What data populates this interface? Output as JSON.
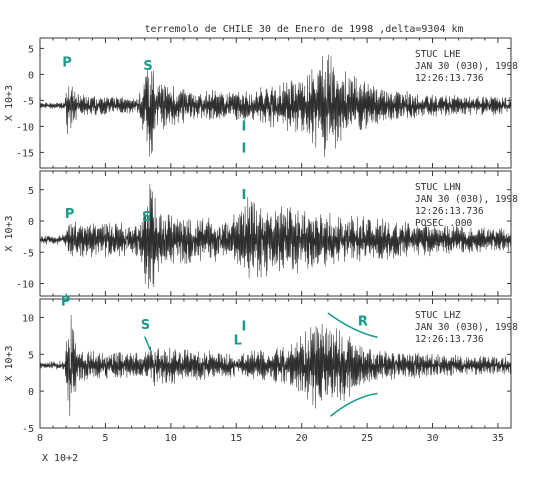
{
  "chart_data": {
    "type": "line",
    "title": "terremolo de CHILE 30 de Enero de 1998 ,delta=9304 km",
    "xlabel": "X 10+2",
    "xlim": [
      0,
      36
    ],
    "xticks": [
      0,
      5,
      10,
      15,
      20,
      25,
      30,
      35
    ],
    "accent": "#1a9a8e",
    "panels": [
      {
        "station": "STUC  LHE",
        "date": "JAN 30 (030), 1998",
        "time": "12:26:13.736",
        "extra": "",
        "ylabel": "X 10+3",
        "ylim": [
          -18,
          7
        ],
        "yticks": [
          5,
          0,
          -5,
          -10,
          -15
        ],
        "baseline": -6,
        "annotations": [
          {
            "text": "P",
            "x": 1.7,
            "y": 1.5
          },
          {
            "text": "S",
            "x": 7.9,
            "y": 0.8
          },
          {
            "text": "I",
            "x": 15.4,
            "y": -10.8
          },
          {
            "text": "I",
            "x": 15.4,
            "y": -15.0
          }
        ],
        "envelope": [
          {
            "x": 0,
            "a": 0.6
          },
          {
            "x": 1.9,
            "a": 0.8
          },
          {
            "x": 2.1,
            "a": 5.5
          },
          {
            "x": 3,
            "a": 2.2
          },
          {
            "x": 7.5,
            "a": 1.6
          },
          {
            "x": 8.4,
            "a": 11
          },
          {
            "x": 9,
            "a": 5
          },
          {
            "x": 12,
            "a": 3.2
          },
          {
            "x": 15.3,
            "a": 2.8
          },
          {
            "x": 17,
            "a": 3.8
          },
          {
            "x": 19,
            "a": 5.2
          },
          {
            "x": 20.5,
            "a": 6.5
          },
          {
            "x": 21.8,
            "a": 11
          },
          {
            "x": 23,
            "a": 7.5
          },
          {
            "x": 26,
            "a": 3.5
          },
          {
            "x": 30,
            "a": 2.3
          },
          {
            "x": 36,
            "a": 1.8
          }
        ]
      },
      {
        "station": "STUC  LHN",
        "date": "JAN 30 (030), 1998",
        "time": "12:26:13.736",
        "extra": "POSEC .000",
        "ylabel": "X 10+3",
        "ylim": [
          -12,
          8
        ],
        "yticks": [
          5,
          0,
          -5,
          -10
        ],
        "baseline": -3,
        "annotations": [
          {
            "text": "P",
            "x": 1.9,
            "y": 0.5
          },
          {
            "text": "S",
            "x": 7.8,
            "y": 0.0
          },
          {
            "text": "I",
            "x": 15.4,
            "y": 3.5
          }
        ],
        "envelope": [
          {
            "x": 0,
            "a": 0.7
          },
          {
            "x": 1.9,
            "a": 0.9
          },
          {
            "x": 2.2,
            "a": 3.0
          },
          {
            "x": 7.5,
            "a": 2.8
          },
          {
            "x": 8.4,
            "a": 10.5
          },
          {
            "x": 9.2,
            "a": 4.5
          },
          {
            "x": 14.5,
            "a": 3.3
          },
          {
            "x": 16,
            "a": 7.5
          },
          {
            "x": 17.5,
            "a": 6
          },
          {
            "x": 20,
            "a": 5.5
          },
          {
            "x": 23,
            "a": 4.2
          },
          {
            "x": 26,
            "a": 3.5
          },
          {
            "x": 30,
            "a": 2.6
          },
          {
            "x": 36,
            "a": 1.8
          }
        ]
      },
      {
        "station": "STUC  LHZ",
        "date": "JAN 30 (030), 1998",
        "time": "12:26:13.736",
        "extra": "",
        "ylabel": "X 10+3",
        "ylim": [
          -5,
          12.5
        ],
        "yticks": [
          10,
          5,
          0,
          -5
        ],
        "baseline": 3.5,
        "annotations": [
          {
            "text": "P",
            "x": 1.6,
            "y": 11.6
          },
          {
            "text": "S",
            "x": 7.7,
            "y": 8.4
          },
          {
            "text": "I",
            "x": 15.4,
            "y": 8.2
          },
          {
            "text": "L",
            "x": 14.8,
            "y": 6.3
          },
          {
            "text": "R",
            "x": 24.3,
            "y": 8.9
          }
        ],
        "envelope": [
          {
            "x": 0,
            "a": 0.5
          },
          {
            "x": 1.9,
            "a": 0.7
          },
          {
            "x": 2.2,
            "a": 8.5
          },
          {
            "x": 3.0,
            "a": 2.2
          },
          {
            "x": 8.0,
            "a": 1.8
          },
          {
            "x": 8.5,
            "a": 3.0
          },
          {
            "x": 15,
            "a": 1.6
          },
          {
            "x": 19,
            "a": 2.8
          },
          {
            "x": 21.5,
            "a": 6.5
          },
          {
            "x": 23,
            "a": 5.5
          },
          {
            "x": 25,
            "a": 2.5
          },
          {
            "x": 30,
            "a": 1.6
          },
          {
            "x": 36,
            "a": 1.2
          }
        ]
      }
    ]
  }
}
